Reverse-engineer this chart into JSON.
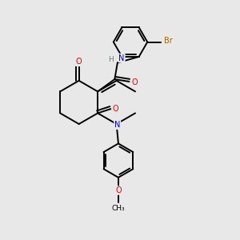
{
  "background_color": "#e8e8e8",
  "fig_size": [
    3.0,
    3.0
  ],
  "dpi": 100,
  "atom_colors": {
    "C": "#000000",
    "N": "#0000cc",
    "O": "#ee0000",
    "Br": "#aa6600",
    "H": "#4a8a8a"
  },
  "bond_color": "#000000",
  "bond_width": 1.4,
  "font_size": 7.0,
  "scale": 1.0
}
